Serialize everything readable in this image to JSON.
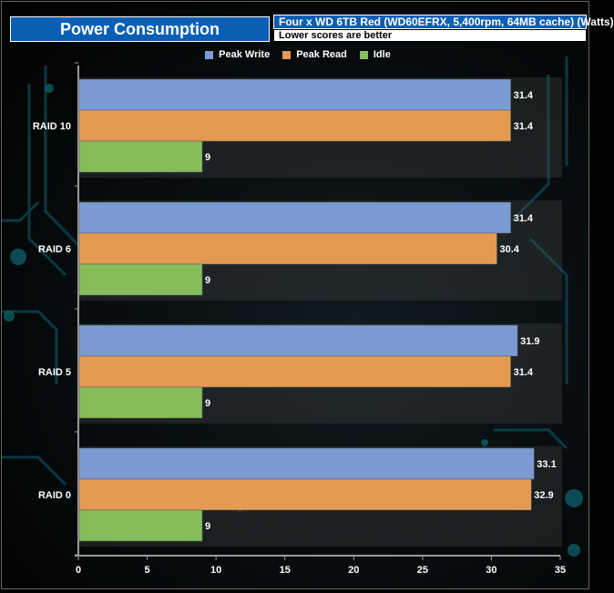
{
  "header": {
    "title": "Power Consumption",
    "subtitle": "Four x WD 6TB Red (WD60EFRX, 5,400rpm, 64MB cache)  (Watts)",
    "note": "Lower scores are better"
  },
  "colors": {
    "peak_write": "#7b9bd3",
    "peak_read": "#e59a52",
    "idle": "#84bd5a",
    "title_bg": "#0a5fb4"
  },
  "chart_data": {
    "type": "bar",
    "orientation": "horizontal",
    "title": "Power Consumption",
    "subtitle": "Four x WD 6TB Red (WD60EFRX, 5,400rpm, 64MB cache)  (Watts)",
    "xlabel": "",
    "ylabel": "",
    "xlim": [
      0,
      35
    ],
    "ticks": [
      0,
      5,
      10,
      15,
      20,
      25,
      30,
      35
    ],
    "legend_position": "top-center",
    "categories": [
      "RAID 10",
      "RAID 6",
      "RAID 5",
      "RAID 0"
    ],
    "series": [
      {
        "name": "Peak Write",
        "key": "peak_write",
        "values": [
          31.4,
          31.4,
          31.9,
          33.1
        ]
      },
      {
        "name": "Peak Read",
        "key": "peak_read",
        "values": [
          31.4,
          30.4,
          31.4,
          32.9
        ]
      },
      {
        "name": "Idle",
        "key": "idle",
        "values": [
          9,
          9,
          9,
          9
        ]
      }
    ]
  }
}
